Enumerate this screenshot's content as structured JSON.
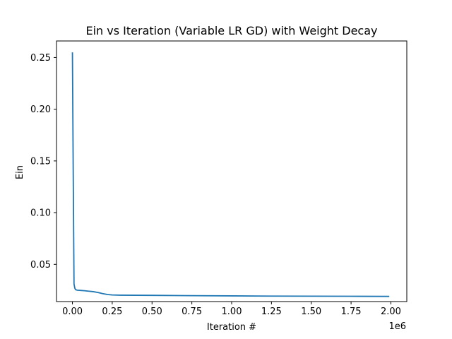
{
  "chart_data": {
    "type": "line",
    "title": "Ein vs Iteration (Variable LR GD) with Weight Decay",
    "xlabel": "Iteration #",
    "ylabel": "Ein",
    "x_offset_label": "1e6",
    "xlim": [
      -100000,
      2100000
    ],
    "ylim": [
      0.014,
      0.266
    ],
    "x_ticks": [
      0,
      250000,
      500000,
      750000,
      1000000,
      1250000,
      1500000,
      1750000,
      2000000
    ],
    "x_tick_labels": [
      "0.00",
      "0.25",
      "0.50",
      "0.75",
      "1.00",
      "1.25",
      "1.50",
      "1.75",
      "2.00"
    ],
    "y_ticks": [
      0.05,
      0.1,
      0.15,
      0.2,
      0.25
    ],
    "y_tick_labels": [
      "0.05",
      "0.10",
      "0.15",
      "0.20",
      "0.25"
    ],
    "grid": false,
    "legend": "none",
    "series": [
      {
        "color": "#1f77b4",
        "x": [
          0,
          5000,
          10000,
          15000,
          20000,
          30000,
          50000,
          75000,
          100000,
          130000,
          160000,
          190000,
          220000,
          250000,
          300000,
          400000,
          500000,
          750000,
          1000000,
          1250000,
          1500000,
          1750000,
          1990000
        ],
        "y": [
          0.255,
          0.14,
          0.031,
          0.027,
          0.0255,
          0.025,
          0.0248,
          0.0245,
          0.0241,
          0.0236,
          0.0228,
          0.0217,
          0.0208,
          0.0204,
          0.0202,
          0.0201,
          0.02,
          0.0197,
          0.0195,
          0.0193,
          0.0192,
          0.0191,
          0.019
        ]
      }
    ]
  }
}
